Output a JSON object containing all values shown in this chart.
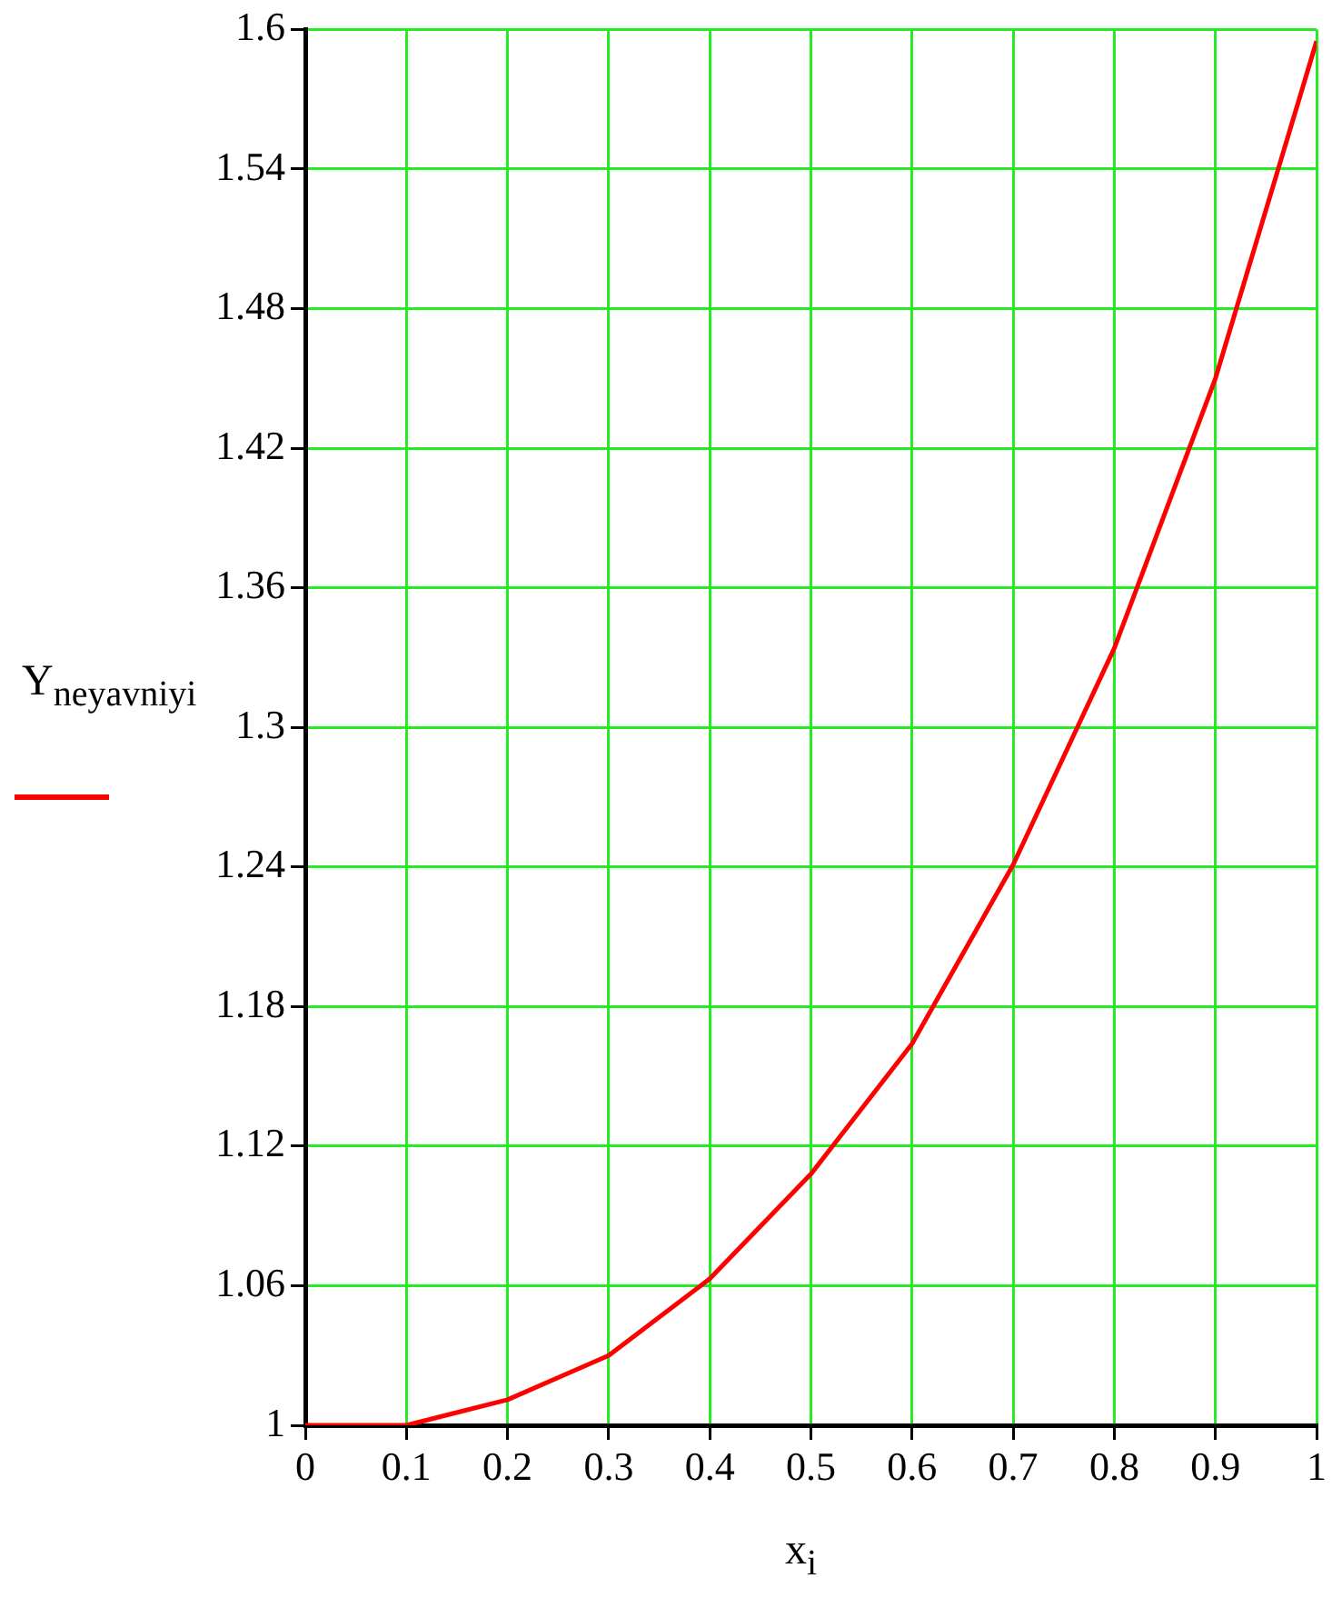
{
  "chart_data": {
    "type": "line",
    "xlabel": "x$_{i}$",
    "ylabel": "Y$_{neyavniy}$$_{i}$",
    "x": [
      0,
      0.1,
      0.2,
      0.3,
      0.4,
      0.5,
      0.6,
      0.7,
      0.8,
      0.9,
      1
    ],
    "series": [
      {
        "color": "#ff0000",
        "values": [
          1,
          1,
          1.011,
          1.03,
          1.063,
          1.108,
          1.164,
          1.241,
          1.334,
          1.45,
          1.595
        ]
      }
    ],
    "xlim": [
      0,
      1
    ],
    "xticks": [
      0,
      0.1,
      0.2,
      0.3,
      0.4,
      0.5,
      0.6,
      0.7,
      0.8,
      0.9,
      1
    ],
    "ylim": [
      1,
      1.6
    ],
    "yticks": [
      1,
      1.06,
      1.12,
      1.18,
      1.24,
      1.3,
      1.36,
      1.42,
      1.48,
      1.54,
      1.6
    ],
    "grid": true,
    "marker": "none",
    "line_style": "solid"
  }
}
